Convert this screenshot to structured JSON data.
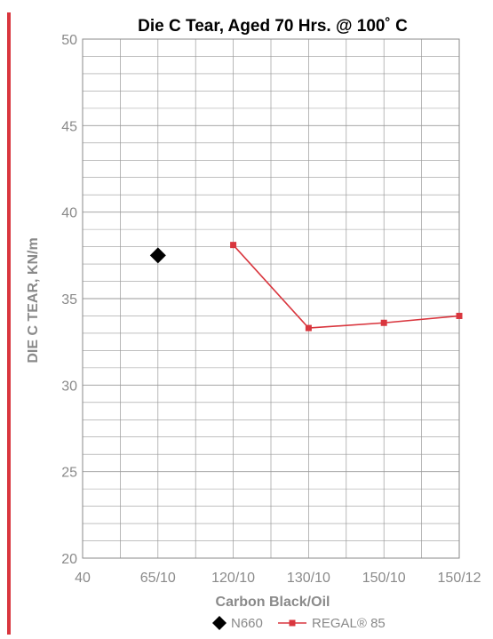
{
  "chart_data": {
    "type": "line",
    "title": "Die C Tear,  Aged 70 Hrs. @ 100˚ C",
    "xlabel": "Carbon Black/Oil",
    "ylabel": "DIE C TEAR, KN/m",
    "categories": [
      "40",
      "65/10",
      "120/10",
      "130/10",
      "150/10",
      "150/12"
    ],
    "ylim": [
      20,
      50
    ],
    "yticks": [
      "20",
      "25",
      "30",
      "35",
      "40",
      "45",
      "50"
    ],
    "grid": true,
    "legend_position": "bottom",
    "series": [
      {
        "name": "N660",
        "marker": "diamond",
        "color": "#000000",
        "points": [
          {
            "x": "65/10",
            "y": 37.5
          }
        ]
      },
      {
        "name": "REGAL® 85",
        "marker": "square",
        "color": "#d9363e",
        "points": [
          {
            "x": "120/10",
            "y": 38.1
          },
          {
            "x": "130/10",
            "y": 33.3
          },
          {
            "x": "150/10",
            "y": 33.6
          },
          {
            "x": "150/12",
            "y": 34.0
          }
        ]
      }
    ]
  },
  "colors": {
    "accent_bar": "#d9363e",
    "grid": "#9a9a9a",
    "tick_text": "#8a8a8a"
  }
}
